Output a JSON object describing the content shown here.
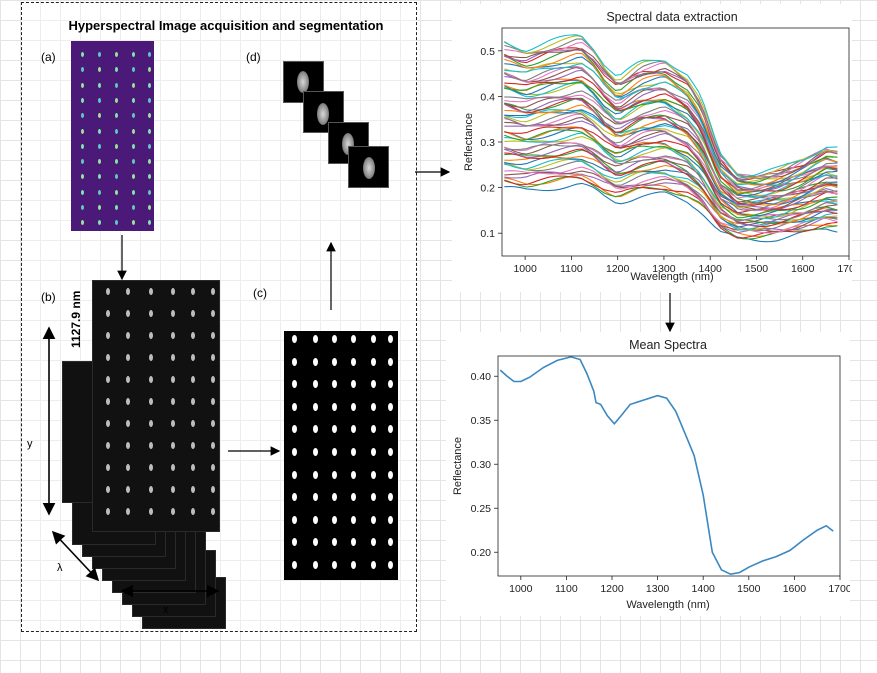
{
  "diagram": {
    "title": "Hyperspectral Image acquisition and segmentation",
    "panel_labels": {
      "a": "(a)",
      "b": "(b)",
      "c": "(c)",
      "d": "(d)"
    },
    "cube_dimension_label": "1127.9 nm",
    "axis_labels": {
      "y": "y",
      "x": "x",
      "lambda": "λ"
    }
  },
  "chart_data": [
    {
      "type": "line",
      "title": "Spectral data extraction",
      "xlabel": "Wavelength (nm)",
      "ylabel": "Reflectance",
      "xlim": [
        950,
        1700
      ],
      "ylim": [
        0.05,
        0.55
      ],
      "xticks": [
        1000,
        1100,
        1200,
        1300,
        1400,
        1500,
        1600,
        1700
      ],
      "yticks": [
        0.1,
        0.2,
        0.3,
        0.4,
        0.5
      ],
      "grid": false,
      "series_count": 60,
      "base_x": [
        955,
        1000,
        1050,
        1120,
        1150,
        1170,
        1200,
        1250,
        1300,
        1350,
        1380,
        1420,
        1460,
        1500,
        1550,
        1600,
        1650,
        1685
      ],
      "mean_values": [
        0.405,
        0.393,
        0.405,
        0.418,
        0.395,
        0.37,
        0.344,
        0.37,
        0.378,
        0.35,
        0.31,
        0.215,
        0.18,
        0.18,
        0.188,
        0.205,
        0.228,
        0.223
      ],
      "spread": [
        0.205,
        0.52
      ]
    },
    {
      "type": "line",
      "title": "Mean Spectra",
      "xlabel": "Wavelength (nm)",
      "ylabel": "Reflectance",
      "xlim": [
        950,
        1700
      ],
      "ylim": [
        0.173,
        0.423
      ],
      "xticks": [
        1000,
        1100,
        1200,
        1300,
        1400,
        1500,
        1600,
        1700
      ],
      "yticks": [
        0.2,
        0.25,
        0.3,
        0.35,
        0.4
      ],
      "ytick_labels": [
        "0.20",
        "0.25",
        "0.30",
        "0.35",
        "0.40"
      ],
      "grid": false,
      "color": "#3a88c0",
      "series": [
        {
          "x": [
            955,
            970,
            985,
            1000,
            1020,
            1050,
            1080,
            1110,
            1130,
            1145,
            1160,
            1165,
            1175,
            1190,
            1205,
            1220,
            1240,
            1270,
            1300,
            1320,
            1340,
            1360,
            1380,
            1400,
            1420,
            1440,
            1460,
            1480,
            1500,
            1530,
            1560,
            1590,
            1620,
            1650,
            1670,
            1685
          ],
          "y": [
            0.407,
            0.4,
            0.394,
            0.394,
            0.399,
            0.41,
            0.418,
            0.422,
            0.419,
            0.403,
            0.383,
            0.37,
            0.368,
            0.355,
            0.346,
            0.355,
            0.368,
            0.373,
            0.378,
            0.375,
            0.36,
            0.335,
            0.31,
            0.265,
            0.2,
            0.18,
            0.175,
            0.177,
            0.183,
            0.19,
            0.195,
            0.202,
            0.214,
            0.225,
            0.23,
            0.224
          ]
        }
      ]
    }
  ],
  "colors": {
    "panel_a_bg": "#4b1a78",
    "line_palette": [
      "#1f77b4",
      "#ff7f0e",
      "#2ca02c",
      "#d62728",
      "#9467bd",
      "#8c564b",
      "#e377c2",
      "#7f7f7f",
      "#bcbd22",
      "#17becf"
    ]
  }
}
